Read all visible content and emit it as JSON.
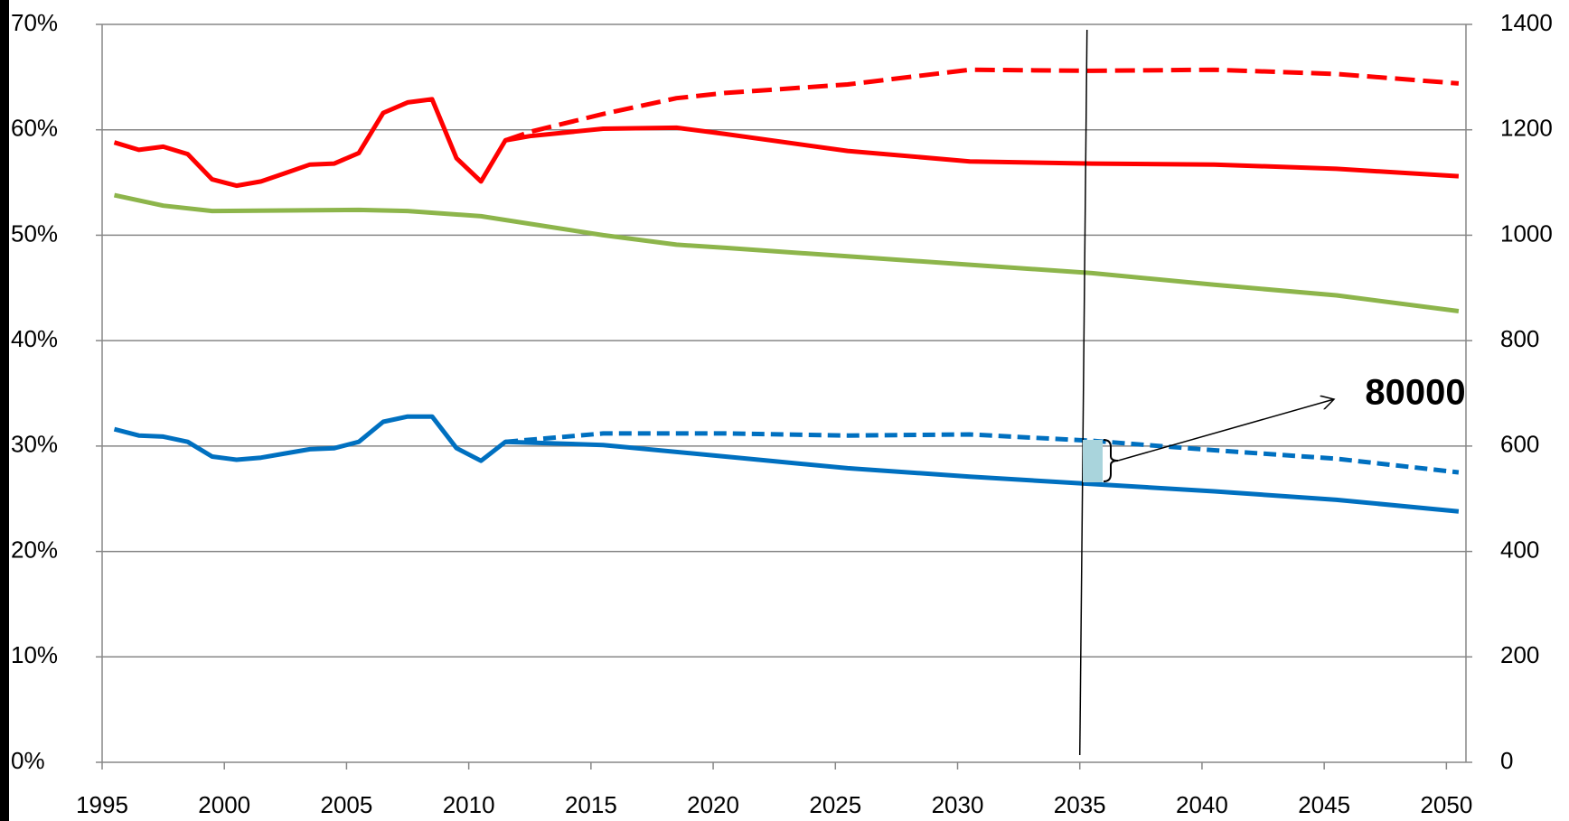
{
  "chart_data": {
    "type": "line",
    "xlim": [
      1995,
      2050.8
    ],
    "xticks": [
      1995,
      2000,
      2005,
      2010,
      2015,
      2020,
      2025,
      2030,
      2035,
      2040,
      2045,
      2050
    ],
    "ylim": [
      0,
      70
    ],
    "yticks": [
      {
        "value": 0,
        "label": "0%"
      },
      {
        "value": 10,
        "label": "10%"
      },
      {
        "value": 20,
        "label": "20%"
      },
      {
        "value": 30,
        "label": "30%"
      },
      {
        "value": 40,
        "label": "40%"
      },
      {
        "value": 50,
        "label": "50%"
      },
      {
        "value": 60,
        "label": "60%"
      },
      {
        "value": 70,
        "label": "70%"
      }
    ],
    "y2lim": [
      0,
      1400
    ],
    "y2ticks": [
      0,
      200,
      400,
      600,
      800,
      1000,
      1200,
      1400
    ],
    "grid": true,
    "vline": 2035,
    "annotation": "80000",
    "series": [
      {
        "color": "#ff0000",
        "dashed": false,
        "x": [
          1995.5,
          1996.5,
          1997.5,
          1998.5,
          1999.5,
          2000.5,
          2001.5,
          2002.5,
          2003.5,
          2004.5,
          2005.5,
          2006.5,
          2007.5,
          2008.5,
          2009.5,
          2010.5,
          2011.5,
          2012.5,
          2015.5,
          2018.5,
          2020.5,
          2025.5,
          2030.5,
          2035.5,
          2040.5,
          2045.5,
          2050.5
        ],
        "values": [
          58.8,
          58.1,
          58.4,
          57.7,
          55.3,
          54.7,
          55.1,
          55.9,
          56.7,
          56.8,
          57.8,
          61.6,
          62.6,
          62.9,
          57.3,
          55.1,
          59.0,
          59.4,
          60.1,
          60.2,
          59.6,
          58.0,
          57.0,
          56.8,
          56.7,
          56.3,
          55.6
        ]
      },
      {
        "color": "#ff0000",
        "dashed": true,
        "x": [
          2011.5,
          2012.5,
          2015.5,
          2018.5,
          2020.5,
          2025.5,
          2030.5,
          2035.5,
          2040.5,
          2045.5,
          2050.5
        ],
        "values": [
          59.0,
          59.8,
          61.5,
          63.0,
          63.5,
          64.3,
          65.7,
          65.6,
          65.7,
          65.3,
          64.4
        ]
      },
      {
        "color": "#8db54b",
        "dashed": false,
        "x": [
          1995.5,
          1997.5,
          1999.5,
          2005.5,
          2007.5,
          2010.5,
          2015.5,
          2018.5,
          2020.5,
          2025.5,
          2030.5,
          2035.5,
          2040.5,
          2045.5,
          2050.5
        ],
        "values": [
          53.8,
          52.8,
          52.3,
          52.4,
          52.3,
          51.8,
          50.0,
          49.1,
          48.8,
          48.0,
          47.2,
          46.4,
          45.3,
          44.3,
          42.8
        ]
      },
      {
        "color": "#0070c0",
        "dashed": false,
        "x": [
          1995.5,
          1996.5,
          1997.5,
          1998.5,
          1999.5,
          2000.5,
          2001.5,
          2002.5,
          2003.5,
          2004.5,
          2005.5,
          2006.5,
          2007.5,
          2008.5,
          2009.5,
          2010.5,
          2011.5,
          2015.5,
          2020.5,
          2025.5,
          2030.5,
          2035.5,
          2040.5,
          2045.5,
          2050.5
        ],
        "values": [
          31.6,
          31.0,
          30.9,
          30.4,
          29.0,
          28.7,
          28.9,
          29.3,
          29.7,
          29.8,
          30.4,
          32.3,
          32.8,
          32.8,
          29.8,
          28.6,
          30.4,
          30.1,
          29.0,
          27.9,
          27.1,
          26.4,
          25.7,
          24.9,
          23.8
        ]
      },
      {
        "color": "#0070c0",
        "dashed": true,
        "x": [
          2011.5,
          2015.5,
          2020.5,
          2025.5,
          2030.5,
          2035.5,
          2040.5,
          2045.5,
          2050.5
        ],
        "values": [
          30.4,
          31.2,
          31.2,
          31.0,
          31.1,
          30.5,
          29.6,
          28.8,
          27.5
        ]
      }
    ]
  }
}
